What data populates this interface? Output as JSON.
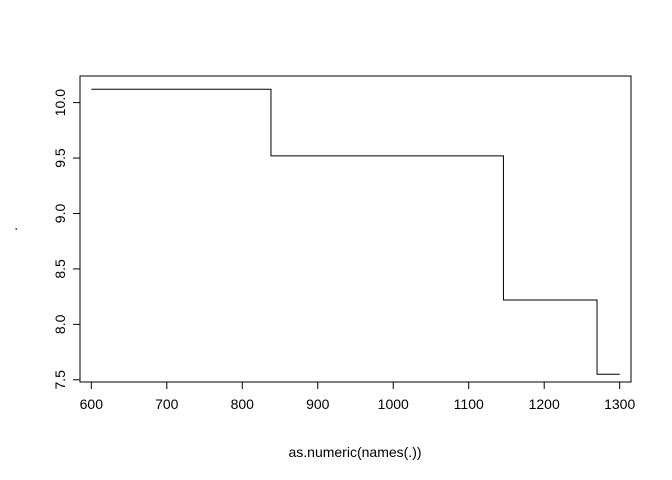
{
  "chart_data": {
    "type": "line",
    "style": "step",
    "title": "",
    "xlabel": "as.numeric(names(.))",
    "ylabel": ".",
    "xlim": [
      585,
      1315
    ],
    "ylim": [
      7.48,
      10.24
    ],
    "x_ticks": [
      600,
      700,
      800,
      900,
      1000,
      1100,
      1200,
      1300
    ],
    "x_tick_labels": [
      "600",
      "700",
      "800",
      "900",
      "1000",
      "1100",
      "1200",
      "1300"
    ],
    "y_ticks": [
      7.5,
      8.0,
      8.5,
      9.0,
      9.5,
      10.0
    ],
    "y_tick_labels": [
      "7.5",
      "8.0",
      "8.5",
      "9.0",
      "9.5",
      "10.0"
    ],
    "grid": false,
    "legend": "none",
    "line_color": "#000000",
    "series": [
      {
        "x": [
          600,
          838,
          1146,
          1270,
          1300
        ],
        "y": [
          10.12,
          9.52,
          8.22,
          7.55,
          7.55
        ]
      }
    ]
  }
}
